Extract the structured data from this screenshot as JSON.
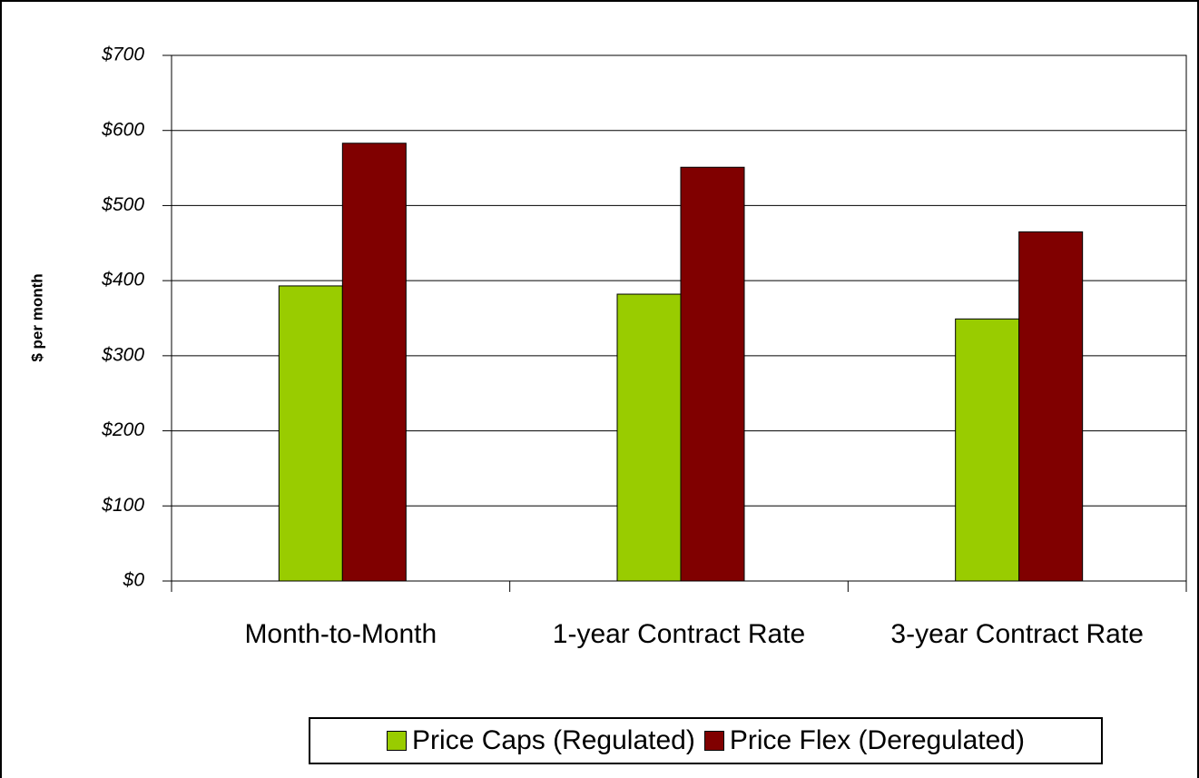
{
  "chart_data": {
    "type": "bar",
    "y_label": "$ per month",
    "categories": [
      "Month-to-Month",
      "1-year Contract Rate",
      "3-year Contract Rate"
    ],
    "series": [
      {
        "name": "Price Caps (Regulated)",
        "color": "#99cc00",
        "values": [
          393,
          382,
          349
        ]
      },
      {
        "name": "Price Flex (Deregulated)",
        "color": "#800000",
        "values": [
          583,
          551,
          465
        ]
      }
    ],
    "ylim": [
      0,
      700
    ],
    "yticks": [
      {
        "value": 0,
        "label": "$0"
      },
      {
        "value": 100,
        "label": "$100"
      },
      {
        "value": 200,
        "label": "$200"
      },
      {
        "value": 300,
        "label": "$300"
      },
      {
        "value": 400,
        "label": "$400"
      },
      {
        "value": 500,
        "label": "$500"
      },
      {
        "value": 600,
        "label": "$600"
      },
      {
        "value": 700,
        "label": "$700"
      }
    ],
    "grid": true
  }
}
